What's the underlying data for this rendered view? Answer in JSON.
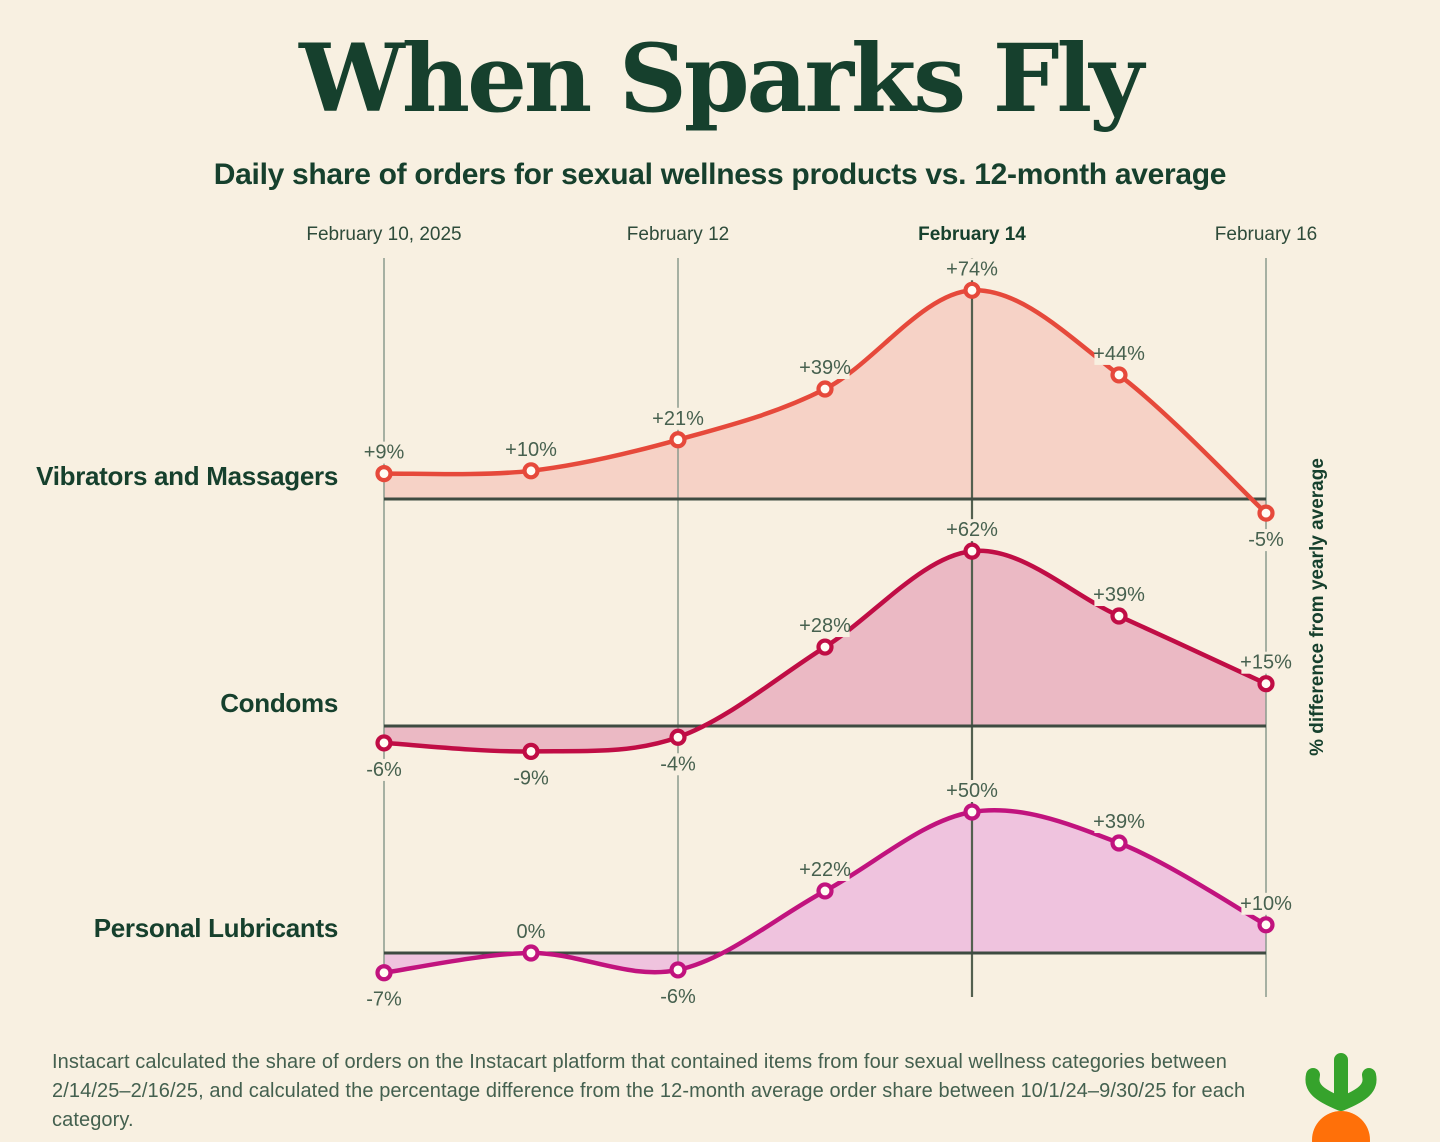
{
  "title": "When Sparks Fly",
  "subtitle": "Daily share of orders for sexual wellness products vs. 12-month average",
  "axis": {
    "x_labels": [
      {
        "label": "February 10, 2025",
        "bold": false
      },
      {
        "label": "February 12",
        "bold": false
      },
      {
        "label": "February 14",
        "bold": true
      },
      {
        "label": "February 16",
        "bold": false
      }
    ],
    "y_axis_label": "% difference from yearly average"
  },
  "chart_data": {
    "type": "area",
    "x": [
      "Feb 10",
      "Feb 11",
      "Feb 12",
      "Feb 13",
      "Feb 14",
      "Feb 15",
      "Feb 16"
    ],
    "x_gridlines_at": [
      "Feb 10",
      "Feb 12",
      "Feb 14",
      "Feb 16"
    ],
    "highlighted_gridline": "Feb 14",
    "ylabel": "% difference from yearly average",
    "grid": "vertical-only",
    "legend_position": "left-of-each-ridge",
    "series": [
      {
        "name": "Vibrators and Massagers",
        "values": [
          9,
          10,
          21,
          39,
          74,
          44,
          -5
        ],
        "point_labels": [
          "+9%",
          "+10%",
          "+21%",
          "+39%",
          "+74%",
          "+44%",
          "-5%"
        ]
      },
      {
        "name": "Condoms",
        "values": [
          -6,
          -9,
          -4,
          28,
          62,
          39,
          15
        ],
        "point_labels": [
          "-6%",
          "-9%",
          "-4%",
          "+28%",
          "+62%",
          "+39%",
          "+15%"
        ]
      },
      {
        "name": "Personal Lubricants",
        "values": [
          -7,
          0,
          -6,
          22,
          50,
          39,
          10
        ],
        "point_labels": [
          "-7%",
          "0%",
          "-6%",
          "+22%",
          "+50%",
          "+39%",
          "+10%"
        ]
      }
    ]
  },
  "colors": {
    "background": "#F8F0E1",
    "heading_green": "#16402D",
    "value_label_green": "#47614F",
    "gridline": "#8A9A8D",
    "gridline_highlight": "#53604F",
    "baseline": "#3E4B41",
    "series": [
      {
        "line": "#E6493B",
        "fill": "#F6D2C6"
      },
      {
        "line": "#C00D45",
        "fill": "#EBB9C4"
      },
      {
        "line": "#C1137E",
        "fill": "#EFC3DE"
      }
    ],
    "marker_fill": "#FFFCF4",
    "logo_green": "#36A32C",
    "logo_orange": "#FF7009"
  },
  "footnote": "Instacart calculated the share of orders on the Instacart platform that contained items from four sexual wellness categories between 2/14/25–2/16/25, and calculated the percentage difference from the 12-month average order share between 10/1/24–9/30/25 for each category."
}
